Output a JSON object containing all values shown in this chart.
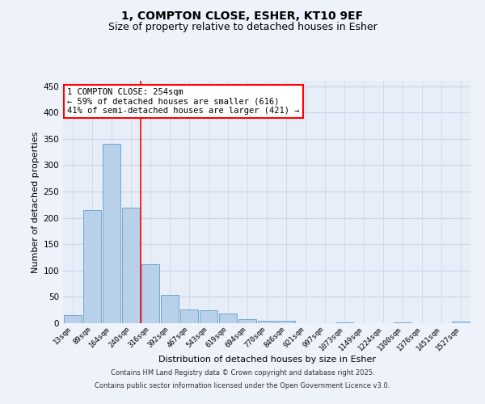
{
  "title_line1": "1, COMPTON CLOSE, ESHER, KT10 9EF",
  "title_line2": "Size of property relative to detached houses in Esher",
  "xlabel": "Distribution of detached houses by size in Esher",
  "ylabel": "Number of detached properties",
  "categories": [
    "13sqm",
    "89sqm",
    "164sqm",
    "240sqm",
    "316sqm",
    "392sqm",
    "467sqm",
    "543sqm",
    "619sqm",
    "694sqm",
    "770sqm",
    "846sqm",
    "921sqm",
    "997sqm",
    "1073sqm",
    "1149sqm",
    "1224sqm",
    "1300sqm",
    "1376sqm",
    "1451sqm",
    "1527sqm"
  ],
  "values": [
    15,
    215,
    340,
    220,
    112,
    54,
    26,
    25,
    18,
    8,
    5,
    4,
    0,
    0,
    2,
    0,
    0,
    2,
    0,
    0,
    3
  ],
  "bar_color": "#b8d0ea",
  "bar_edge_color": "#6fa8d0",
  "red_line_x": 3.5,
  "annotation_text": "1 COMPTON CLOSE: 254sqm\n← 59% of detached houses are smaller (616)\n41% of semi-detached houses are larger (421) →",
  "annotation_box_color": "white",
  "annotation_box_edge_color": "red",
  "annotation_fontsize": 7.5,
  "ylim": [
    0,
    460
  ],
  "yticks": [
    0,
    50,
    100,
    150,
    200,
    250,
    300,
    350,
    400,
    450
  ],
  "grid_color": "#c8d4e8",
  "background_color": "#e8eef8",
  "fig_background": "#eef2fa",
  "footer_line1": "Contains HM Land Registry data © Crown copyright and database right 2025.",
  "footer_line2": "Contains public sector information licensed under the Open Government Licence v3.0.",
  "title_fontsize": 10,
  "subtitle_fontsize": 9,
  "xlabel_fontsize": 8,
  "ylabel_fontsize": 8
}
